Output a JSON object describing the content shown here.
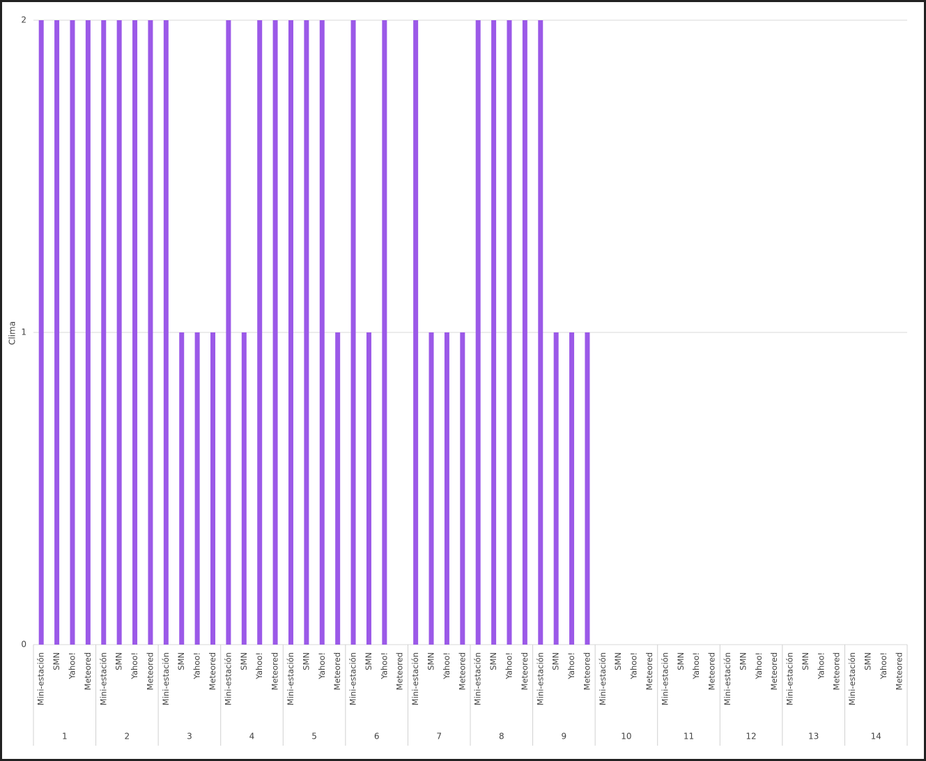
{
  "chart_data": {
    "type": "bar",
    "y_label": "Clima",
    "color": "#9b59e8",
    "categories": [
      "Mini-estación",
      "SMN",
      "Yahoo!",
      "Meteored",
      "Mini-estación",
      "SMN",
      "Yahoo!",
      "Meteored",
      "Mini-estación",
      "SMN",
      "Yahoo!",
      "Meteored",
      "Mini-estación",
      "SMN",
      "Yahoo!",
      "Meteored",
      "Mini-estación",
      "SMN",
      "Yahoo!",
      "Meteored",
      "Mini-estación",
      "SMN",
      "Yahoo!",
      "Meteored",
      "Mini-estación",
      "SMN",
      "Yahoo!",
      "Meteored",
      "Mini-estación",
      "SMN",
      "Yahoo!",
      "Meteored",
      "Mini-estación",
      "SMN",
      "Yahoo!",
      "Meteored",
      "Mini-estación",
      "SMN",
      "Yahoo!",
      "Meteored",
      "Mini-estación",
      "SMN",
      "Yahoo!",
      "Meteored",
      "Mini-estación",
      "SMN",
      "Yahoo!",
      "Meteored",
      "Mini-estación",
      "SMN",
      "Yahoo!",
      "Meteored",
      "Mini-estación",
      "SMN",
      "Yahoo!",
      "Meteored"
    ],
    "groups": [
      "1",
      "2",
      "3",
      "4",
      "5",
      "6",
      "7",
      "8",
      "9",
      "10",
      "11",
      "12",
      "13",
      "14"
    ],
    "values": [
      2,
      2,
      2,
      2,
      2,
      2,
      2,
      2,
      2,
      1,
      1,
      1,
      2,
      1,
      2,
      2,
      2,
      2,
      2,
      1,
      2,
      1,
      2,
      0,
      2,
      1,
      1,
      1,
      2,
      2,
      2,
      2,
      2,
      1,
      1,
      1,
      0,
      0,
      0,
      0,
      0,
      0,
      0,
      0,
      0,
      0,
      0,
      0,
      0,
      0,
      0,
      0,
      0,
      0,
      0,
      0
    ],
    "ylim": [
      0,
      2
    ],
    "yticks": [
      0,
      1,
      2
    ],
    "grid": true
  }
}
